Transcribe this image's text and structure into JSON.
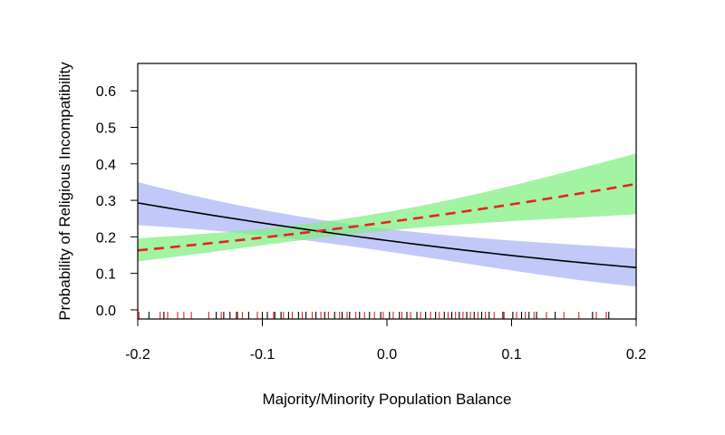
{
  "chart_data": {
    "type": "line",
    "title": "",
    "xlabel": "Majority/Minority Population Balance",
    "ylabel": "Probability of Religious Incompatibility",
    "xlim": [
      -0.2,
      0.2
    ],
    "ylim": [
      -0.025,
      0.675
    ],
    "x_ticks": [
      -0.2,
      -0.1,
      0.0,
      0.1,
      0.2
    ],
    "x_tick_labels": [
      "-0.2",
      "-0.1",
      "0.0",
      "0.1",
      "0.2"
    ],
    "y_ticks": [
      0.0,
      0.1,
      0.2,
      0.3,
      0.4,
      0.5,
      0.6
    ],
    "y_tick_labels": [
      "0.0",
      "0.1",
      "0.2",
      "0.3",
      "0.4",
      "0.5",
      "0.6"
    ],
    "grid": false,
    "legend": "none",
    "series": [
      {
        "style": "solid",
        "color": "#000000",
        "band_color": "#aab4f5",
        "x": [
          -0.2,
          -0.1,
          0.0,
          0.1,
          0.2
        ],
        "y": [
          0.293,
          0.238,
          0.19,
          0.149,
          0.116
        ],
        "lower": [
          0.232,
          0.204,
          0.16,
          0.108,
          0.064
        ],
        "upper": [
          0.35,
          0.274,
          0.222,
          0.19,
          0.168
        ]
      },
      {
        "style": "dashed",
        "color": "#e8231f",
        "band_color": "#7ef07e",
        "x": [
          -0.2,
          -0.1,
          0.0,
          0.1,
          0.2
        ],
        "y": [
          0.163,
          0.198,
          0.24,
          0.289,
          0.345
        ],
        "lower": [
          0.133,
          0.177,
          0.217,
          0.243,
          0.262
        ],
        "upper": [
          0.196,
          0.222,
          0.268,
          0.34,
          0.428
        ]
      }
    ],
    "rug": {
      "black": [
        -0.191,
        -0.179,
        -0.137,
        -0.131,
        -0.126,
        -0.12,
        -0.111,
        -0.1,
        -0.096,
        -0.09,
        -0.085,
        -0.079,
        -0.071,
        -0.065,
        -0.057,
        -0.05,
        -0.042,
        -0.036,
        -0.03,
        -0.022,
        -0.014,
        -0.005,
        0.002,
        0.01,
        0.016,
        0.024,
        0.031,
        0.039,
        0.046,
        0.052,
        0.058,
        0.064,
        0.07,
        0.076,
        0.082,
        0.093,
        0.101,
        0.108,
        0.114,
        0.12,
        0.135,
        0.165,
        0.178
      ],
      "red": [
        -0.199,
        -0.182,
        -0.176,
        -0.168,
        -0.163,
        -0.157,
        -0.143,
        -0.133,
        -0.121,
        -0.116,
        -0.104,
        -0.091,
        -0.083,
        -0.076,
        -0.068,
        -0.06,
        -0.053,
        -0.047,
        -0.038,
        -0.032,
        -0.025,
        -0.018,
        -0.01,
        -0.003,
        0.005,
        0.012,
        0.019,
        0.027,
        0.035,
        0.042,
        0.049,
        0.055,
        0.061,
        0.067,
        0.073,
        0.079,
        0.086,
        0.094,
        0.104,
        0.111,
        0.118,
        0.128,
        0.142,
        0.154,
        0.168,
        0.176
      ]
    }
  }
}
